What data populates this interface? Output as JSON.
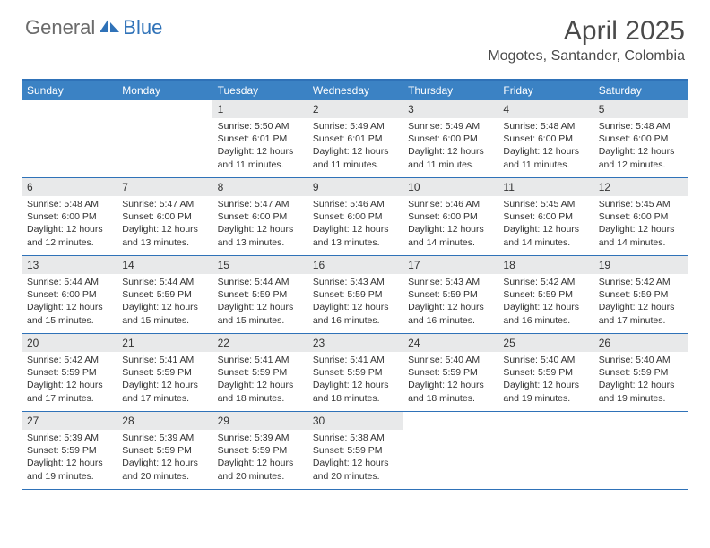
{
  "logo": {
    "grey": "General",
    "blue": "Blue"
  },
  "title": "April 2025",
  "location": "Mogotes, Santander, Colombia",
  "colors": {
    "header_bar": "#3b82c4",
    "border": "#2f72b8",
    "daynum_bg": "#e8e9ea",
    "text": "#333333",
    "logo_grey": "#6b6b6b",
    "logo_blue": "#2f72b8"
  },
  "weekdays": [
    "Sunday",
    "Monday",
    "Tuesday",
    "Wednesday",
    "Thursday",
    "Friday",
    "Saturday"
  ],
  "weeks": [
    [
      null,
      null,
      {
        "n": "1",
        "sr": "5:50 AM",
        "ss": "6:01 PM",
        "dl": "12 hours and 11 minutes."
      },
      {
        "n": "2",
        "sr": "5:49 AM",
        "ss": "6:01 PM",
        "dl": "12 hours and 11 minutes."
      },
      {
        "n": "3",
        "sr": "5:49 AM",
        "ss": "6:00 PM",
        "dl": "12 hours and 11 minutes."
      },
      {
        "n": "4",
        "sr": "5:48 AM",
        "ss": "6:00 PM",
        "dl": "12 hours and 11 minutes."
      },
      {
        "n": "5",
        "sr": "5:48 AM",
        "ss": "6:00 PM",
        "dl": "12 hours and 12 minutes."
      }
    ],
    [
      {
        "n": "6",
        "sr": "5:48 AM",
        "ss": "6:00 PM",
        "dl": "12 hours and 12 minutes."
      },
      {
        "n": "7",
        "sr": "5:47 AM",
        "ss": "6:00 PM",
        "dl": "12 hours and 13 minutes."
      },
      {
        "n": "8",
        "sr": "5:47 AM",
        "ss": "6:00 PM",
        "dl": "12 hours and 13 minutes."
      },
      {
        "n": "9",
        "sr": "5:46 AM",
        "ss": "6:00 PM",
        "dl": "12 hours and 13 minutes."
      },
      {
        "n": "10",
        "sr": "5:46 AM",
        "ss": "6:00 PM",
        "dl": "12 hours and 14 minutes."
      },
      {
        "n": "11",
        "sr": "5:45 AM",
        "ss": "6:00 PM",
        "dl": "12 hours and 14 minutes."
      },
      {
        "n": "12",
        "sr": "5:45 AM",
        "ss": "6:00 PM",
        "dl": "12 hours and 14 minutes."
      }
    ],
    [
      {
        "n": "13",
        "sr": "5:44 AM",
        "ss": "6:00 PM",
        "dl": "12 hours and 15 minutes."
      },
      {
        "n": "14",
        "sr": "5:44 AM",
        "ss": "5:59 PM",
        "dl": "12 hours and 15 minutes."
      },
      {
        "n": "15",
        "sr": "5:44 AM",
        "ss": "5:59 PM",
        "dl": "12 hours and 15 minutes."
      },
      {
        "n": "16",
        "sr": "5:43 AM",
        "ss": "5:59 PM",
        "dl": "12 hours and 16 minutes."
      },
      {
        "n": "17",
        "sr": "5:43 AM",
        "ss": "5:59 PM",
        "dl": "12 hours and 16 minutes."
      },
      {
        "n": "18",
        "sr": "5:42 AM",
        "ss": "5:59 PM",
        "dl": "12 hours and 16 minutes."
      },
      {
        "n": "19",
        "sr": "5:42 AM",
        "ss": "5:59 PM",
        "dl": "12 hours and 17 minutes."
      }
    ],
    [
      {
        "n": "20",
        "sr": "5:42 AM",
        "ss": "5:59 PM",
        "dl": "12 hours and 17 minutes."
      },
      {
        "n": "21",
        "sr": "5:41 AM",
        "ss": "5:59 PM",
        "dl": "12 hours and 17 minutes."
      },
      {
        "n": "22",
        "sr": "5:41 AM",
        "ss": "5:59 PM",
        "dl": "12 hours and 18 minutes."
      },
      {
        "n": "23",
        "sr": "5:41 AM",
        "ss": "5:59 PM",
        "dl": "12 hours and 18 minutes."
      },
      {
        "n": "24",
        "sr": "5:40 AM",
        "ss": "5:59 PM",
        "dl": "12 hours and 18 minutes."
      },
      {
        "n": "25",
        "sr": "5:40 AM",
        "ss": "5:59 PM",
        "dl": "12 hours and 19 minutes."
      },
      {
        "n": "26",
        "sr": "5:40 AM",
        "ss": "5:59 PM",
        "dl": "12 hours and 19 minutes."
      }
    ],
    [
      {
        "n": "27",
        "sr": "5:39 AM",
        "ss": "5:59 PM",
        "dl": "12 hours and 19 minutes."
      },
      {
        "n": "28",
        "sr": "5:39 AM",
        "ss": "5:59 PM",
        "dl": "12 hours and 20 minutes."
      },
      {
        "n": "29",
        "sr": "5:39 AM",
        "ss": "5:59 PM",
        "dl": "12 hours and 20 minutes."
      },
      {
        "n": "30",
        "sr": "5:38 AM",
        "ss": "5:59 PM",
        "dl": "12 hours and 20 minutes."
      },
      null,
      null,
      null
    ]
  ],
  "labels": {
    "sunrise": "Sunrise:",
    "sunset": "Sunset:",
    "daylight": "Daylight:"
  }
}
